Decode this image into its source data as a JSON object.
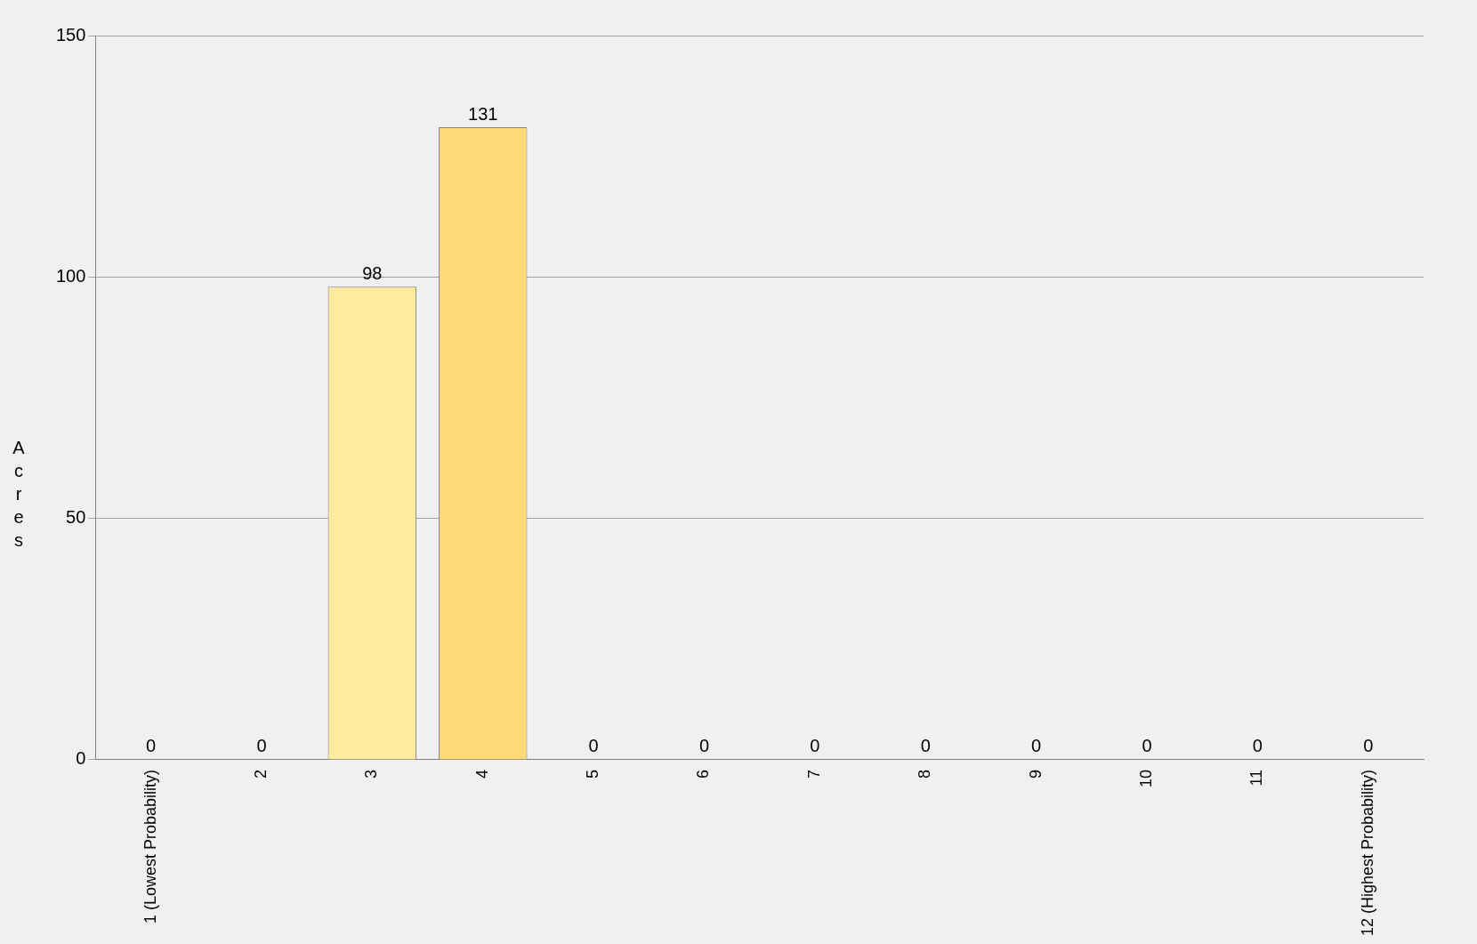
{
  "chart_data": {
    "type": "bar",
    "ylabel": "Acres",
    "categories": [
      "1 (Lowest Probability)",
      "2",
      "3",
      "4",
      "5",
      "6",
      "7",
      "8",
      "9",
      "10",
      "11",
      "12 (Highest Probability)"
    ],
    "values": [
      0,
      0,
      98,
      131,
      0,
      0,
      0,
      0,
      0,
      0,
      0,
      0
    ],
    "colors": [
      "#d8d8d8",
      "#d8d8b0",
      "#ffeba0",
      "#ffd878",
      "#e0963c",
      "#e07a32",
      "#dc4a28",
      "#c81818",
      "#a00022",
      "#6a0020",
      "#4a1400",
      "#000000"
    ],
    "ylim": [
      0,
      150
    ],
    "yticks": [
      0,
      50,
      100,
      150
    ],
    "grid": "y",
    "data_labels": true
  }
}
